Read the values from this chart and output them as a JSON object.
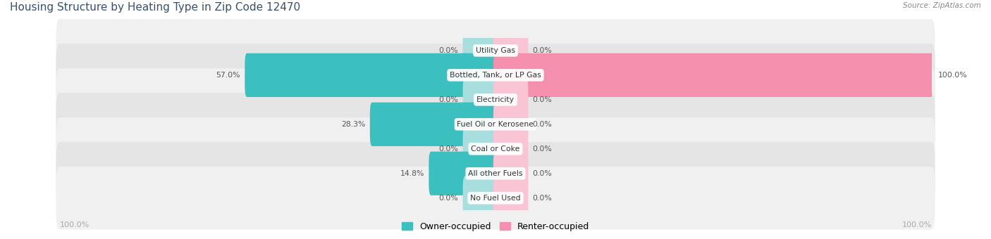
{
  "title": "Housing Structure by Heating Type in Zip Code 12470",
  "source": "Source: ZipAtlas.com",
  "categories": [
    "Utility Gas",
    "Bottled, Tank, or LP Gas",
    "Electricity",
    "Fuel Oil or Kerosene",
    "Coal or Coke",
    "All other Fuels",
    "No Fuel Used"
  ],
  "owner_values": [
    0.0,
    57.0,
    0.0,
    28.3,
    0.0,
    14.8,
    0.0
  ],
  "renter_values": [
    0.0,
    100.0,
    0.0,
    0.0,
    0.0,
    0.0,
    0.0
  ],
  "owner_color": "#3BBFBF",
  "renter_color": "#F48FAE",
  "owner_color_light": "#A8DEDE",
  "renter_color_light": "#F9C5D5",
  "row_bg_even": "#F0F0F0",
  "row_bg_odd": "#E5E5E5",
  "title_color": "#3A5068",
  "source_color": "#888888",
  "value_color": "#555555",
  "cat_label_color": "#333333",
  "axis_label_color": "#AAAAAA",
  "max_value": 100.0,
  "stub_size": 7.0,
  "figsize": [
    14.06,
    3.4
  ],
  "dpi": 100
}
